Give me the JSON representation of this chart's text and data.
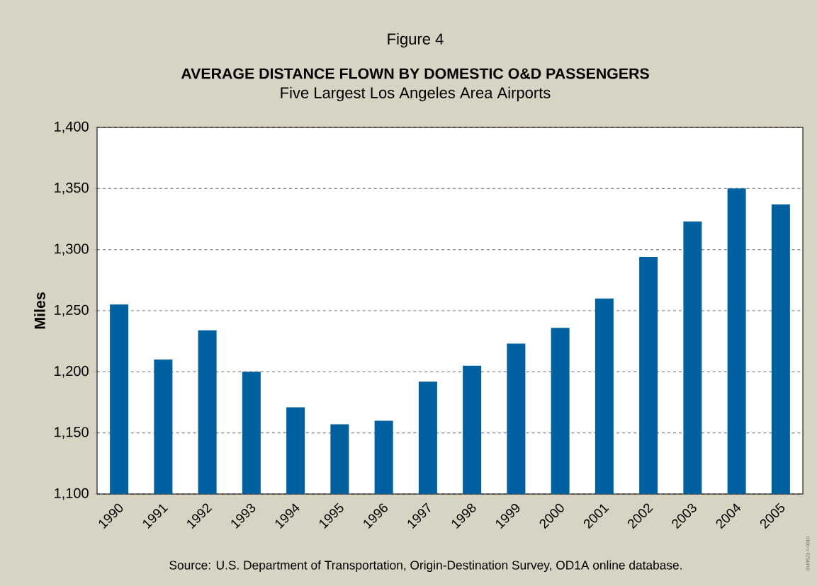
{
  "chart_data": {
    "type": "bar",
    "title": "AVERAGE DISTANCE FLOWN BY DOMESTIC O&D PASSENGERS",
    "subtitle": "Five Largest Los Angeles Area Airports",
    "ylabel": "Miles",
    "categories": [
      "1990",
      "1991",
      "1992",
      "1993",
      "1994",
      "1995",
      "1996",
      "1997",
      "1998",
      "1999",
      "2000",
      "2001",
      "2002",
      "2003",
      "2004",
      "2005"
    ],
    "values": [
      1255,
      1210,
      1234,
      1200,
      1171,
      1157,
      1160,
      1192,
      1205,
      1223,
      1236,
      1260,
      1294,
      1323,
      1350,
      1337
    ],
    "color": "#0060a0",
    "ylim": [
      1100,
      1400
    ],
    "yticks": [
      {
        "value": 1100,
        "label": "1,100"
      },
      {
        "value": 1150,
        "label": "1,150"
      },
      {
        "value": 1200,
        "label": "1,200"
      },
      {
        "value": 1250,
        "label": "1,250"
      },
      {
        "value": 1300,
        "label": "1,300"
      },
      {
        "value": 1350,
        "label": "1,350"
      },
      {
        "value": 1400,
        "label": "1,400"
      }
    ],
    "grid": "y",
    "annotations": [
      "Figure 4",
      "Source:  U.S. Department of Transportation, Origin-Destination Survey, OD1A online database.",
      "BUR521 F-0010"
    ]
  }
}
